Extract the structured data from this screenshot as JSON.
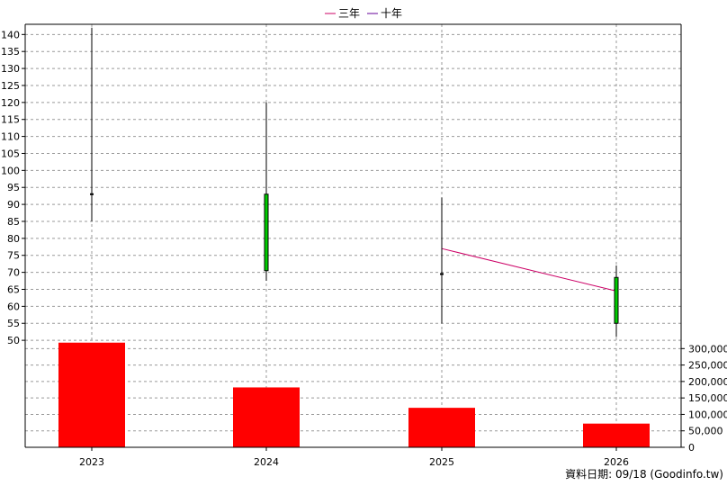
{
  "chart_data": {
    "type": "candlestick",
    "legend": [
      {
        "name": "三年",
        "color": "#cc0066"
      },
      {
        "name": "十年",
        "color": "#660099"
      }
    ],
    "legend_position": "top-center",
    "categories": [
      "2023",
      "2024",
      "2025",
      "2026"
    ],
    "price": {
      "ylim": [
        45,
        143
      ],
      "ticks": [
        50,
        55,
        60,
        65,
        70,
        75,
        80,
        85,
        90,
        95,
        100,
        105,
        110,
        115,
        120,
        125,
        130,
        135,
        140
      ],
      "candles": [
        {
          "x": "2023",
          "open": 93,
          "close": 93,
          "high": 142,
          "low": 85,
          "color": "#000000"
        },
        {
          "x": "2024",
          "open": 70.5,
          "close": 93,
          "high": 120,
          "low": 67.5,
          "color": "#00cc00"
        },
        {
          "x": "2025",
          "open": 69.5,
          "close": 69.5,
          "high": 92,
          "low": 55,
          "color": "#000000"
        },
        {
          "x": "2026",
          "open": 55,
          "close": 68.5,
          "high": 72,
          "low": 51,
          "color": "#00cc00"
        }
      ]
    },
    "moving_average_3y": {
      "name": "三年",
      "color": "#cc0066",
      "points": [
        {
          "x": "2025",
          "y": 77
        },
        {
          "x": "2026",
          "y": 64.5
        }
      ]
    },
    "volume": {
      "ylim": [
        0,
        320000
      ],
      "ticks": [
        0,
        50000,
        100000,
        150000,
        200000,
        250000,
        300000
      ],
      "tick_labels": [
        "0",
        "50,000",
        "100,000",
        "150,000",
        "200,000",
        "250,000",
        "300,000"
      ],
      "values": [
        318000,
        182000,
        120000,
        72000
      ],
      "color": "#ff0000"
    },
    "grid": true
  },
  "footer": "資料日期: 09/18  (Goodinfo.tw)"
}
